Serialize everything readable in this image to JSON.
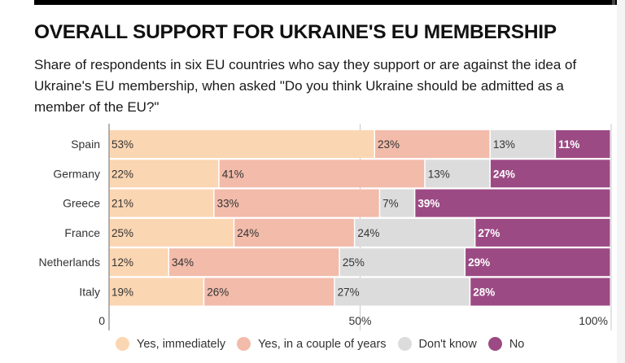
{
  "title": "OVERALL SUPPORT FOR UKRAINE'S EU MEMBERSHIP",
  "subtitle": "Share of respondents in six EU countries who say they support or are against the idea of Ukraine's EU membership, when asked \"Do you think Ukraine should be admitted as a member of the EU?\"",
  "chart_data": {
    "type": "bar",
    "orientation": "horizontal",
    "stacked": true,
    "title": "OVERALL SUPPORT FOR UKRAINE'S EU MEMBERSHIP",
    "categories": [
      "Spain",
      "Germany",
      "Greece",
      "France",
      "Netherlands",
      "Italy"
    ],
    "series": [
      {
        "name": "Yes, immediately",
        "color": "#fbd6b3",
        "labels": [
          "53%",
          "22%",
          "21%",
          "25%",
          "12%",
          "19%"
        ],
        "values": [
          53,
          22,
          21,
          25,
          12,
          19
        ]
      },
      {
        "name": "Yes, in a couple of years",
        "color": "#f2bbaa",
        "labels": [
          "23%",
          "41%",
          "33%",
          "24%",
          "34%",
          "26%"
        ],
        "values": [
          23,
          41,
          33,
          24,
          34,
          26
        ]
      },
      {
        "name": "Don't know",
        "color": "#dcdcdc",
        "labels": [
          "13%",
          "13%",
          "7%",
          "24%",
          "25%",
          "27%"
        ],
        "values": [
          13,
          13,
          7,
          24,
          25,
          27
        ]
      },
      {
        "name": "No",
        "color": "#9c4a84",
        "labels": [
          "11%",
          "24%",
          "39%",
          "27%",
          "29%",
          "28%"
        ],
        "values": [
          11,
          24,
          39,
          27,
          29,
          28
        ]
      }
    ],
    "xlim": [
      0,
      100
    ],
    "xticks": [
      {
        "value": 0,
        "label": "0"
      },
      {
        "value": 50,
        "label": "50%"
      },
      {
        "value": 100,
        "label": "100%"
      }
    ],
    "legend_position": "bottom"
  }
}
